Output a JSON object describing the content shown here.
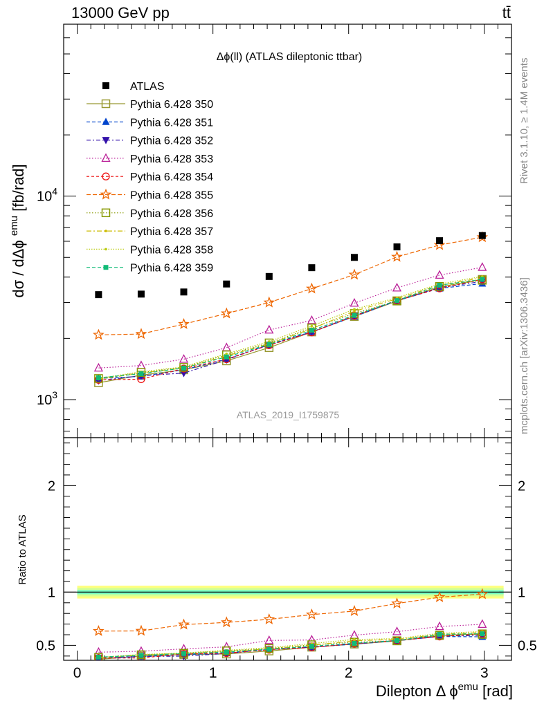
{
  "header": {
    "left": "13000 GeV pp",
    "right": "tt̄"
  },
  "side_text": {
    "rivet": "Rivet 3.1.10, ≥ 1.4M events",
    "mcplots": "mcplots.cern.ch [arXiv:1306.3436]"
  },
  "analysis_id": "ATLAS_2019_I1759875",
  "colors": {
    "data": "#000000",
    "band_outer": "#ffff66",
    "band_mid": "#ccff99",
    "band_inner": "#66ffcc"
  },
  "chart_data": [
    {
      "type": "line",
      "panel": "main",
      "title": "Δϕ(ll) (ATLAS dileptonic ttbar)",
      "ylabel": "dσ / dΔϕemu [fb/rad]",
      "yscale": "log",
      "ylim": [
        650,
        70000
      ],
      "xlim": [
        -0.1,
        3.2
      ],
      "yticks": [
        "10^3",
        "10^4"
      ],
      "x": [
        0.157,
        0.471,
        0.785,
        1.1,
        1.414,
        1.728,
        2.042,
        2.356,
        2.67,
        2.985
      ],
      "data_series": {
        "name": "ATLAS",
        "color": "#000000",
        "values": [
          3280,
          3300,
          3380,
          3700,
          4030,
          4450,
          5000,
          5630,
          6040,
          6400
        ]
      },
      "series": [
        {
          "name": "Pythia 6.428 350",
          "color": "#999933",
          "dash": "solid",
          "marker": "square-open",
          "values": [
            1210,
            1320,
            1400,
            1550,
            1800,
            2150,
            2560,
            3050,
            3580,
            3900
          ]
        },
        {
          "name": "Pythia 6.428 351",
          "color": "#0044cc",
          "dash": "5,3",
          "marker": "triangle-up",
          "values": [
            1270,
            1300,
            1400,
            1580,
            1860,
            2150,
            2560,
            3060,
            3520,
            3720
          ]
        },
        {
          "name": "Pythia 6.428 352",
          "color": "#3311aa",
          "dash": "6,3,2,3",
          "marker": "triangle-down",
          "values": [
            1240,
            1310,
            1350,
            1570,
            1860,
            2150,
            2580,
            3080,
            3550,
            3810
          ]
        },
        {
          "name": "Pythia 6.428 353",
          "color": "#bb2299",
          "dash": "1.5,2.5",
          "marker": "triangle-open",
          "values": [
            1430,
            1470,
            1580,
            1800,
            2200,
            2450,
            2980,
            3540,
            4090,
            4470
          ]
        },
        {
          "name": "Pythia 6.428 354",
          "color": "#ee1111",
          "dash": "4,3",
          "marker": "circle-open",
          "values": [
            1250,
            1260,
            1420,
            1580,
            1850,
            2140,
            2580,
            3070,
            3520,
            3900
          ]
        },
        {
          "name": "Pythia 6.428 355",
          "color": "#ee6600",
          "dash": "6,3",
          "marker": "star-open",
          "values": [
            2080,
            2100,
            2350,
            2650,
            3000,
            3510,
            4110,
            5030,
            5750,
            6280
          ]
        },
        {
          "name": "Pythia 6.428 356",
          "color": "#889900",
          "dash": "1.5,2.5",
          "marker": "square-open",
          "values": [
            1270,
            1360,
            1440,
            1660,
            1900,
            2250,
            2650,
            3060,
            3600,
            3860
          ]
        },
        {
          "name": "Pythia 6.428 357",
          "color": "#ccbb00",
          "dash": "7,3,2,3",
          "marker": "dot",
          "values": [
            1260,
            1350,
            1430,
            1640,
            1880,
            2230,
            2720,
            3130,
            3650,
            3970
          ]
        },
        {
          "name": "Pythia 6.428 358",
          "color": "#bbcc11",
          "dash": "1.5,2",
          "marker": "dot",
          "values": [
            1270,
            1370,
            1450,
            1680,
            1930,
            2300,
            2780,
            3170,
            3700,
            4030
          ]
        },
        {
          "name": "Pythia 6.428 359",
          "color": "#11bb77",
          "dash": "5,3",
          "marker": "square",
          "values": [
            1280,
            1340,
            1430,
            1620,
            1870,
            2190,
            2600,
            3070,
            3650,
            3900
          ]
        }
      ]
    },
    {
      "type": "line",
      "panel": "ratio",
      "ylabel": "Ratio to ATLAS",
      "xlabel": "Dilepton Δ ϕemu [rad]",
      "ylim": [
        0.36,
        2.45
      ],
      "xlim": [
        -0.1,
        3.2
      ],
      "xticks": [
        "0",
        "1",
        "2",
        "3"
      ],
      "yticks": [
        "0.5",
        "1",
        "2"
      ],
      "band": {
        "outer": 0.06,
        "mid": 0.04,
        "inner": 0.02
      },
      "series_ratio": [
        [
          0.369,
          0.4,
          0.414,
          0.419,
          0.447,
          0.483,
          0.512,
          0.542,
          0.593,
          0.609
        ],
        [
          0.387,
          0.394,
          0.414,
          0.427,
          0.462,
          0.483,
          0.512,
          0.544,
          0.583,
          0.581
        ],
        [
          0.378,
          0.397,
          0.399,
          0.424,
          0.462,
          0.483,
          0.516,
          0.547,
          0.588,
          0.595
        ],
        [
          0.436,
          0.445,
          0.467,
          0.486,
          0.546,
          0.551,
          0.596,
          0.629,
          0.677,
          0.698
        ],
        [
          0.381,
          0.382,
          0.42,
          0.427,
          0.459,
          0.481,
          0.516,
          0.545,
          0.583,
          0.609
        ],
        [
          0.634,
          0.636,
          0.695,
          0.716,
          0.744,
          0.789,
          0.822,
          0.893,
          0.952,
          0.981
        ],
        [
          0.387,
          0.412,
          0.426,
          0.449,
          0.471,
          0.506,
          0.53,
          0.544,
          0.596,
          0.603
        ],
        [
          0.384,
          0.409,
          0.423,
          0.443,
          0.467,
          0.501,
          0.544,
          0.556,
          0.604,
          0.62
        ],
        [
          0.387,
          0.415,
          0.429,
          0.454,
          0.479,
          0.517,
          0.556,
          0.563,
          0.613,
          0.63
        ],
        [
          0.39,
          0.406,
          0.423,
          0.438,
          0.464,
          0.492,
          0.52,
          0.545,
          0.604,
          0.609
        ]
      ]
    }
  ]
}
